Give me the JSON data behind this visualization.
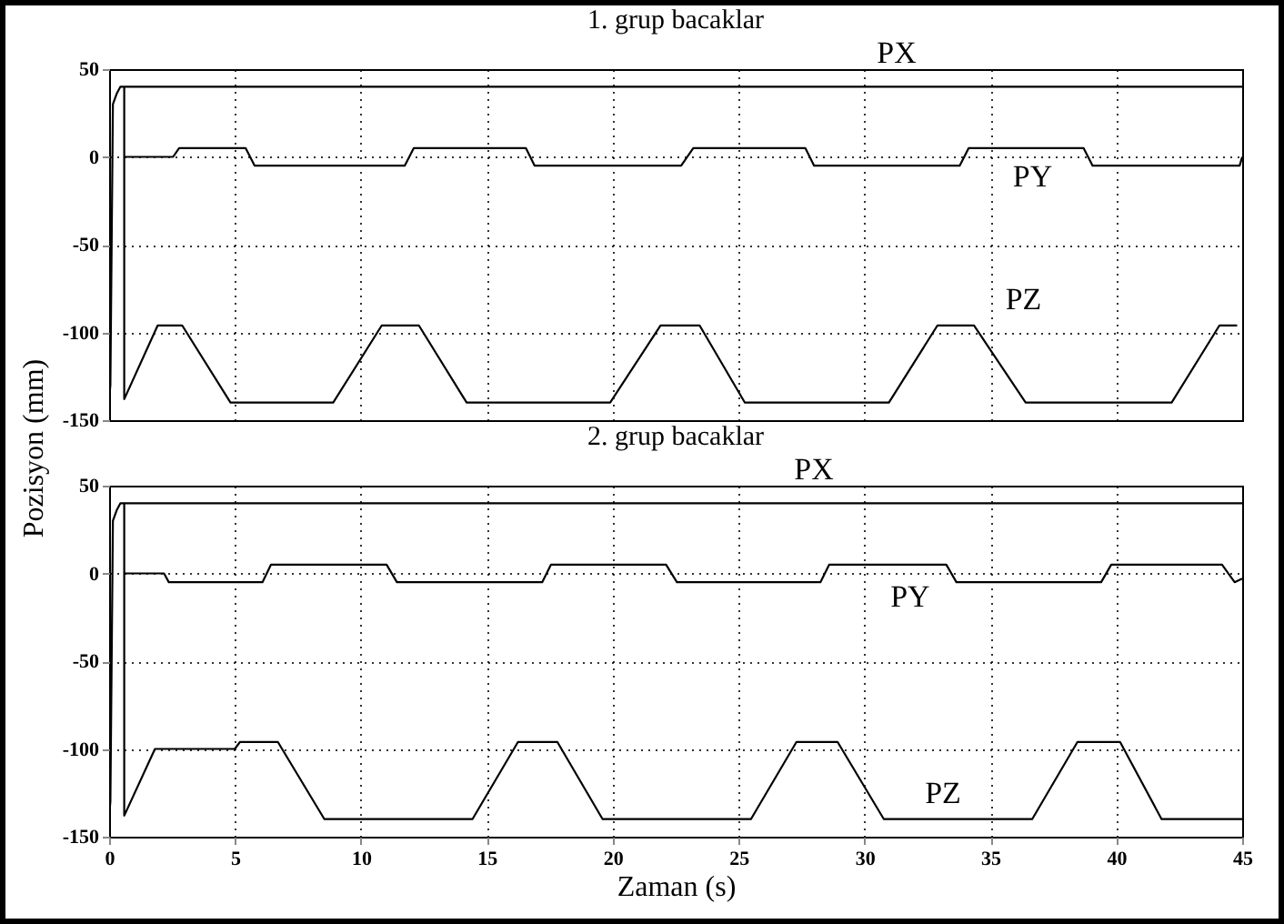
{
  "chart_data": [
    {
      "type": "line",
      "title": "1. grup bacaklar",
      "ylabel": "Pozisyon (mm)",
      "xlim": [
        0,
        45
      ],
      "ylim": [
        -150,
        50
      ],
      "xticks": [
        0,
        5,
        10,
        15,
        20,
        25,
        30,
        35,
        40,
        45
      ],
      "yticks": [
        -150,
        -100,
        -50,
        0,
        50
      ],
      "grid": true,
      "tick_labels": "y",
      "series": [
        {
          "name": "PX",
          "color": "#000000",
          "x": [
            0,
            0.05,
            0.15,
            0.3,
            0.45,
            45
          ],
          "values": [
            -138,
            -130,
            30,
            36,
            40,
            40
          ]
        },
        {
          "name": "PY",
          "color": "#000000",
          "x": [
            0.6,
            2.54,
            2.78,
            5.42,
            5.78,
            11.74,
            12.1,
            16.55,
            16.9,
            22.72,
            23.2,
            27.65,
            28.0,
            33.78,
            34.14,
            38.7,
            39.06,
            44.9,
            45
          ],
          "values": [
            0,
            0,
            5,
            5,
            -5,
            -5,
            5,
            5,
            -5,
            -5,
            5,
            5,
            -5,
            -5,
            5,
            5,
            -5,
            -5,
            0
          ]
        },
        {
          "name": "PZ",
          "color": "#000000",
          "x": [
            0.6,
            0.6,
            1.93,
            2.9,
            4.82,
            8.9,
            10.83,
            12.3,
            14.2,
            19.9,
            21.9,
            23.45,
            25.25,
            30.97,
            32.9,
            34.35,
            36.4,
            42.2,
            44.1,
            44.8
          ],
          "values": [
            40,
            -138,
            -96,
            -96,
            -140,
            -140,
            -96,
            -96,
            -140,
            -140,
            -96,
            -96,
            -140,
            -140,
            -96,
            -96,
            -140,
            -140,
            -96,
            -96
          ]
        }
      ]
    },
    {
      "type": "line",
      "title": "2. grup bacaklar",
      "xlabel": "Zaman (s)",
      "xlim": [
        0,
        45
      ],
      "ylim": [
        -150,
        50
      ],
      "xticks": [
        0,
        5,
        10,
        15,
        20,
        25,
        30,
        35,
        40,
        45
      ],
      "yticks": [
        -150,
        -100,
        -50,
        0,
        50
      ],
      "grid": true,
      "series": [
        {
          "name": "PX",
          "color": "#000000",
          "x": [
            0,
            0.05,
            0.15,
            0.3,
            0.45,
            45
          ],
          "values": [
            -138,
            -130,
            30,
            36,
            40,
            40
          ]
        },
        {
          "name": "PY",
          "color": "#000000",
          "x": [
            0.6,
            2.18,
            2.37,
            6.09,
            6.43,
            11.02,
            11.43,
            17.2,
            17.55,
            22.12,
            22.55,
            28.25,
            28.6,
            33.25,
            33.65,
            39.4,
            39.8,
            44.2,
            44.7,
            45
          ],
          "values": [
            0,
            0,
            -5,
            -5,
            5,
            5,
            -5,
            -5,
            5,
            5,
            -5,
            -5,
            5,
            5,
            -5,
            -5,
            5,
            5,
            -5,
            -3
          ]
        },
        {
          "name": "PZ",
          "color": "#000000",
          "x": [
            0.6,
            0.6,
            1.82,
            4.99,
            5.2,
            6.7,
            8.55,
            14.43,
            16.24,
            17.8,
            19.6,
            25.49,
            27.3,
            28.93,
            30.77,
            36.66,
            38.46,
            40.15,
            41.8,
            45
          ],
          "values": [
            40,
            -138,
            -100,
            -100,
            -96,
            -96,
            -140,
            -140,
            -96,
            -96,
            -140,
            -140,
            -96,
            -96,
            -140,
            -140,
            -96,
            -96,
            -140,
            -140
          ]
        }
      ]
    }
  ]
}
